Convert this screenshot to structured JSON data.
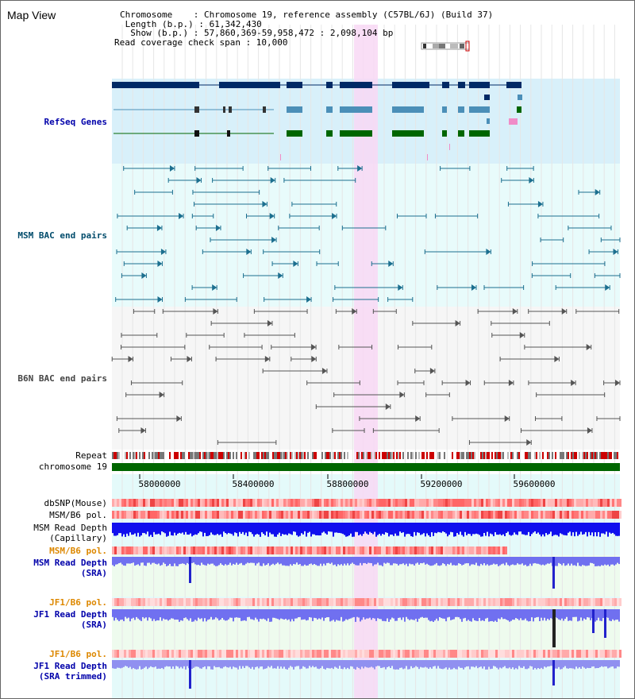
{
  "title": "Map View",
  "info": {
    "chromosome": "Chromosome    : Chromosome 19, reference assembly (C57BL/6J) (Build 37)",
    "length": " Length (b.p.) : 61,342,430",
    "show": "  Show (b.p.) : 57,860,369-59,958,472 : 2,098,104 bp",
    "span": "Read coverage check span : 10,000"
  },
  "tracks": {
    "refseq": "RefSeq Genes",
    "msm_bac": "MSM BAC end pairs",
    "b6n_bac": "B6N BAC end pairs",
    "repeat": "Repeat",
    "chrom": "chromosome 19",
    "dbsnp": "dbSNP(Mouse)",
    "msm_pol": "MSM/B6 pol.",
    "msm_depth_cap_1": "MSM Read Depth",
    "msm_depth_cap_2": "(Capillary)",
    "msm_pol2": "MSM/B6 pol.",
    "msm_depth_sra_1": "MSM Read Depth",
    "msm_depth_sra_2": "(SRA)",
    "jf1_pol": "JF1/B6 pol.",
    "jf1_depth_1": "JF1 Read Depth",
    "jf1_depth_2": "(SRA)",
    "jf1_pol2": "JF1/B6 pol.",
    "jf1_trim_1": "JF1 Read Depth",
    "jf1_trim_2": "(SRA trimmed)"
  },
  "axis": {
    "ticks": [
      "58000000",
      "58400000",
      "58800000",
      "59200000",
      "59600000"
    ]
  },
  "colors": {
    "refseq_bg": "#d8f0fa",
    "bac_bg": "#e8fbfb",
    "highlight": "#f8d8f4",
    "gene_dark": "#002a66",
    "gene_mid": "#4b8fb8",
    "gene_green": "#006600",
    "chrom_green": "#006600",
    "depth_blue": "#0000ee",
    "depth_light": "#7070f0"
  }
}
